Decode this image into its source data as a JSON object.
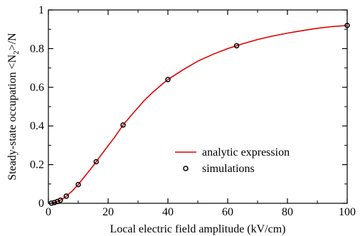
{
  "chart_data": {
    "type": "line",
    "title": "",
    "xlabel": "Local electric field amplitude (kV/cm)",
    "ylabel_main": "Steady-state occupation <N",
    "ylabel_sub": "2",
    "ylabel_end": ">/N",
    "xlim": [
      0,
      100
    ],
    "ylim": [
      0,
      1
    ],
    "xticks": [
      0,
      20,
      40,
      60,
      80,
      100
    ],
    "yticks": [
      0,
      0.2,
      0.4,
      0.6,
      0.8,
      1
    ],
    "xtick_labels": [
      "0",
      "20",
      "40",
      "60",
      "80",
      "100"
    ],
    "ytick_labels": [
      "0",
      "0.2",
      "0.4",
      "0.6",
      "0.8",
      "1"
    ],
    "grid": false,
    "legend_position": "lower-right",
    "series": [
      {
        "name": "analytic expression",
        "kind": "line",
        "color": "#e00000",
        "x": [
          1,
          2,
          3,
          4,
          5,
          6,
          8,
          10,
          12,
          14,
          16,
          18,
          20,
          22,
          25,
          28,
          30,
          32,
          35,
          38,
          40,
          45,
          50,
          55,
          60,
          63,
          65,
          70,
          75,
          80,
          85,
          90,
          95,
          100
        ],
        "y": [
          0.001,
          0.004,
          0.009,
          0.016,
          0.025,
          0.037,
          0.064,
          0.097,
          0.136,
          0.174,
          0.215,
          0.257,
          0.298,
          0.338,
          0.405,
          0.46,
          0.495,
          0.53,
          0.575,
          0.615,
          0.64,
          0.69,
          0.735,
          0.77,
          0.8,
          0.815,
          0.825,
          0.847,
          0.865,
          0.88,
          0.893,
          0.905,
          0.914,
          0.92
        ]
      },
      {
        "name": "simulations",
        "kind": "scatter",
        "color": "#000000",
        "x": [
          1,
          2,
          3,
          4,
          6,
          10,
          16,
          25,
          40,
          63,
          100
        ],
        "y": [
          0.001,
          0.004,
          0.009,
          0.016,
          0.037,
          0.097,
          0.215,
          0.405,
          0.64,
          0.815,
          0.92
        ]
      }
    ]
  }
}
